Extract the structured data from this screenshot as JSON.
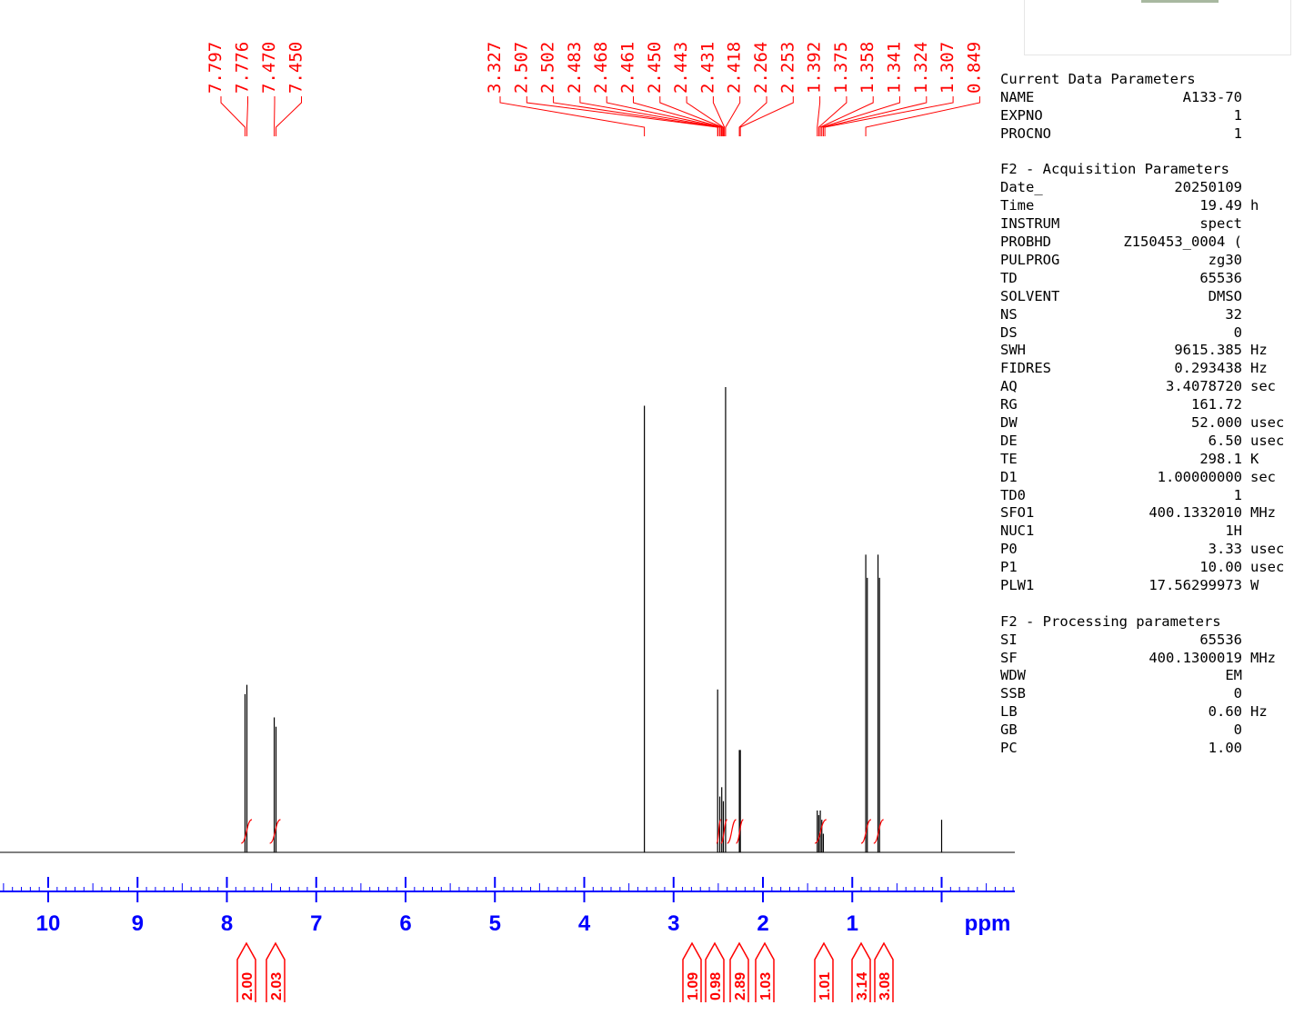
{
  "params": {
    "sections": [
      {
        "title": "Current Data Parameters",
        "rows": [
          {
            "name": "NAME",
            "value": "A133-70",
            "unit": ""
          },
          {
            "name": "EXPNO",
            "value": "1",
            "unit": ""
          },
          {
            "name": "PROCNO",
            "value": "1",
            "unit": ""
          }
        ]
      },
      {
        "title": "F2 - Acquisition Parameters",
        "rows": [
          {
            "name": "Date_",
            "value": "20250109",
            "unit": ""
          },
          {
            "name": "Time",
            "value": "19.49",
            "unit": "h"
          },
          {
            "name": "INSTRUM",
            "value": "spect",
            "unit": ""
          },
          {
            "name": "PROBHD",
            "value": "Z150453_0004 (",
            "unit": ""
          },
          {
            "name": "PULPROG",
            "value": "zg30",
            "unit": ""
          },
          {
            "name": "TD",
            "value": "65536",
            "unit": ""
          },
          {
            "name": "SOLVENT",
            "value": "DMSO",
            "unit": ""
          },
          {
            "name": "NS",
            "value": "32",
            "unit": ""
          },
          {
            "name": "DS",
            "value": "0",
            "unit": ""
          },
          {
            "name": "SWH",
            "value": "9615.385",
            "unit": "Hz"
          },
          {
            "name": "FIDRES",
            "value": "0.293438",
            "unit": "Hz"
          },
          {
            "name": "AQ",
            "value": "3.4078720",
            "unit": "sec"
          },
          {
            "name": "RG",
            "value": "161.72",
            "unit": ""
          },
          {
            "name": "DW",
            "value": "52.000",
            "unit": "usec"
          },
          {
            "name": "DE",
            "value": "6.50",
            "unit": "usec"
          },
          {
            "name": "TE",
            "value": "298.1",
            "unit": "K"
          },
          {
            "name": "D1",
            "value": "1.00000000",
            "unit": "sec"
          },
          {
            "name": "TD0",
            "value": "1",
            "unit": ""
          },
          {
            "name": "SFO1",
            "value": "400.1332010",
            "unit": "MHz"
          },
          {
            "name": "NUC1",
            "value": "1H",
            "unit": ""
          },
          {
            "name": "P0",
            "value": "3.33",
            "unit": "usec"
          },
          {
            "name": "P1",
            "value": "10.00",
            "unit": "usec"
          },
          {
            "name": "PLW1",
            "value": "17.56299973",
            "unit": "W"
          }
        ]
      },
      {
        "title": "F2 - Processing parameters",
        "rows": [
          {
            "name": "SI",
            "value": "65536",
            "unit": ""
          },
          {
            "name": "SF",
            "value": "400.1300019",
            "unit": "MHz"
          },
          {
            "name": "WDW",
            "value": "EM",
            "unit": ""
          },
          {
            "name": "SSB",
            "value": "0",
            "unit": ""
          },
          {
            "name": "LB",
            "value": "0.60",
            "unit": "Hz"
          },
          {
            "name": "GB",
            "value": "0",
            "unit": ""
          },
          {
            "name": "PC",
            "value": "1.00",
            "unit": ""
          }
        ]
      }
    ]
  },
  "chart_data": {
    "type": "line",
    "x_unit": "ppm",
    "x_reversed": true,
    "xlim": [
      11.0,
      -0.8
    ],
    "ylim": [
      0,
      1.0
    ],
    "x_ticks": [
      10,
      9,
      8,
      7,
      6,
      5,
      4,
      3,
      2,
      1
    ],
    "x_ticks_shown": [
      "10",
      "9",
      "8",
      "7",
      "6",
      "5",
      "4",
      "3",
      "2",
      "1"
    ],
    "grid": false,
    "colors": {
      "axis": "#0000ff",
      "trace": "#000000",
      "annotation": "#ff0000"
    },
    "peak_labels": [
      "7.797",
      "7.776",
      "7.470",
      "7.450",
      "3.327",
      "2.507",
      "2.502",
      "2.483",
      "2.468",
      "2.461",
      "2.450",
      "2.443",
      "2.431",
      "2.418",
      "2.264",
      "2.253",
      "1.392",
      "1.375",
      "1.358",
      "1.341",
      "1.324",
      "1.307",
      "0.849"
    ],
    "peak_positions": [
      7.797,
      7.776,
      7.47,
      7.45,
      3.327,
      2.507,
      2.502,
      2.483,
      2.468,
      2.461,
      2.45,
      2.443,
      2.431,
      2.418,
      2.264,
      2.253,
      1.392,
      1.375,
      1.358,
      1.341,
      1.324,
      1.307,
      0.849
    ],
    "peaks": [
      {
        "ppm": 7.797,
        "height": 0.34
      },
      {
        "ppm": 7.776,
        "height": 0.36
      },
      {
        "ppm": 7.47,
        "height": 0.29
      },
      {
        "ppm": 7.45,
        "height": 0.27
      },
      {
        "ppm": 3.327,
        "height": 0.96
      },
      {
        "ppm": 2.507,
        "height": 0.35
      },
      {
        "ppm": 2.483,
        "height": 0.12
      },
      {
        "ppm": 2.461,
        "height": 0.14
      },
      {
        "ppm": 2.443,
        "height": 0.11
      },
      {
        "ppm": 2.418,
        "height": 1.0
      },
      {
        "ppm": 2.264,
        "height": 0.22
      },
      {
        "ppm": 2.253,
        "height": 0.22
      },
      {
        "ppm": 1.392,
        "height": 0.09
      },
      {
        "ppm": 1.375,
        "height": 0.08
      },
      {
        "ppm": 1.358,
        "height": 0.09
      },
      {
        "ppm": 1.341,
        "height": 0.07
      },
      {
        "ppm": 1.324,
        "height": 0.04
      },
      {
        "ppm": 0.849,
        "height": 0.64
      },
      {
        "ppm": 0.832,
        "height": 0.59
      },
      {
        "ppm": 0.712,
        "height": 0.64
      },
      {
        "ppm": 0.695,
        "height": 0.59
      },
      {
        "ppm": 0.0,
        "height": 0.07
      }
    ],
    "integrals": [
      {
        "from": 7.84,
        "to": 7.72,
        "value": "2.00"
      },
      {
        "from": 7.52,
        "to": 7.4,
        "value": "2.03"
      },
      {
        "from": 2.52,
        "to": 2.47,
        "value": "1.09"
      },
      {
        "from": 2.47,
        "to": 2.4,
        "value": "0.98"
      },
      {
        "from": 2.4,
        "to": 2.3,
        "value": "2.89"
      },
      {
        "from": 2.3,
        "to": 2.22,
        "value": "1.03"
      },
      {
        "from": 1.42,
        "to": 1.29,
        "value": "1.01"
      },
      {
        "from": 0.9,
        "to": 0.79,
        "value": "3.14"
      },
      {
        "from": 0.76,
        "to": 0.65,
        "value": "3.08"
      }
    ]
  }
}
